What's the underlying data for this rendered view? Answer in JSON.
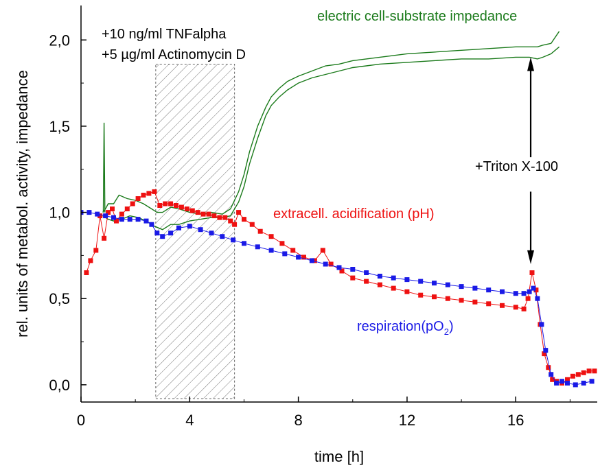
{
  "chart_data": {
    "type": "line",
    "title": "",
    "xlabel": "time [h]",
    "ylabel": "rel. units of metabol. activity, impedance",
    "xlim": [
      0,
      19
    ],
    "ylim": [
      -0.1,
      2.2
    ],
    "xticks": [
      0,
      4,
      8,
      12,
      16
    ],
    "xtick_labels": [
      "0",
      "4",
      "8",
      "12",
      "16"
    ],
    "yticks": [
      0.0,
      0.5,
      1.0,
      1.5,
      2.0
    ],
    "ytick_labels": [
      "0,0",
      "0,5",
      "1,0",
      "1,5",
      "2,0"
    ],
    "treatment_window": [
      2.75,
      5.65
    ],
    "colors": {
      "impedance": "#1a7a1a",
      "acidification": "#ee1111",
      "respiration": "#1a1ae6"
    },
    "labels": {
      "impedance": "electric cell-substrate impedance",
      "acidification": "extracell. acidification  (pH)",
      "respiration_main": "respiration(pO",
      "respiration_sub": "2",
      "respiration_close": ")",
      "treatment_line1": "+10 ng/ml TNFalpha",
      "treatment_line2": "+5 µg/ml Actinomycin D",
      "triton": "+Triton X-100"
    },
    "triton_arrow_x": 16.55,
    "series": [
      {
        "key": "impedance_upper",
        "x": [
          0.8,
          0.9,
          1.0,
          1.2,
          1.4,
          1.7,
          2.0,
          2.3,
          2.6,
          2.8,
          3.0,
          3.3,
          3.6,
          4.0,
          4.4,
          4.8,
          5.2,
          5.5,
          5.8,
          6.0,
          6.2,
          6.5,
          6.8,
          7.0,
          7.3,
          7.6,
          8.0,
          8.5,
          9.0,
          9.5,
          10.0,
          10.5,
          11.0,
          12.0,
          13.0,
          14.0,
          15.0,
          16.0,
          16.5,
          16.8,
          17.0,
          17.3,
          17.6
        ],
        "y": [
          1.0,
          1.02,
          1.05,
          1.05,
          1.1,
          1.08,
          1.07,
          1.05,
          1.02,
          1.0,
          1.0,
          1.03,
          1.02,
          1.0,
          0.99,
          1.0,
          0.99,
          1.02,
          1.12,
          1.22,
          1.35,
          1.5,
          1.61,
          1.67,
          1.72,
          1.76,
          1.79,
          1.82,
          1.85,
          1.86,
          1.88,
          1.89,
          1.9,
          1.92,
          1.93,
          1.94,
          1.95,
          1.96,
          1.96,
          1.96,
          1.97,
          1.98,
          2.05
        ]
      },
      {
        "key": "impedance_lower",
        "x": [
          0.8,
          1.0,
          1.2,
          1.5,
          1.8,
          2.1,
          2.4,
          2.7,
          3.0,
          3.3,
          3.6,
          4.0,
          4.4,
          4.8,
          5.2,
          5.5,
          5.8,
          6.0,
          6.2,
          6.5,
          6.8,
          7.0,
          7.3,
          7.6,
          8.0,
          8.5,
          9.0,
          9.5,
          10.0,
          10.5,
          11.0,
          12.0,
          13.0,
          14.0,
          15.0,
          16.0,
          16.5,
          16.8,
          17.0,
          17.3,
          17.6
        ],
        "y": [
          0.98,
          0.96,
          0.95,
          0.96,
          0.98,
          0.97,
          0.95,
          0.92,
          0.9,
          0.93,
          0.93,
          0.95,
          0.96,
          0.97,
          0.97,
          0.98,
          1.06,
          1.15,
          1.28,
          1.43,
          1.56,
          1.62,
          1.67,
          1.71,
          1.75,
          1.78,
          1.8,
          1.82,
          1.84,
          1.85,
          1.86,
          1.87,
          1.88,
          1.89,
          1.89,
          1.9,
          1.9,
          1.89,
          1.9,
          1.92,
          1.96
        ]
      },
      {
        "key": "impedance_spike",
        "x": [
          0.82,
          0.85,
          0.88
        ],
        "y": [
          1.0,
          1.52,
          1.0
        ]
      },
      {
        "key": "acidification",
        "x": [
          0.2,
          0.35,
          0.55,
          0.7,
          0.85,
          1.0,
          1.15,
          1.3,
          1.5,
          1.7,
          1.9,
          2.1,
          2.3,
          2.5,
          2.7,
          2.9,
          3.1,
          3.3,
          3.5,
          3.7,
          3.9,
          4.1,
          4.3,
          4.5,
          4.7,
          4.9,
          5.1,
          5.3,
          5.5,
          5.65,
          5.8,
          6.0,
          6.3,
          6.6,
          7.0,
          7.4,
          7.8,
          8.2,
          8.6,
          8.9,
          9.2,
          9.6,
          10.0,
          10.5,
          11.0,
          11.5,
          12.0,
          12.5,
          13.0,
          13.5,
          14.0,
          14.5,
          15.0,
          15.5,
          16.0,
          16.3,
          16.45,
          16.6,
          16.75,
          16.9,
          17.05,
          17.2,
          17.35,
          17.5,
          17.7,
          17.9,
          18.1,
          18.3,
          18.5,
          18.7,
          18.9
        ],
        "y": [
          0.65,
          0.72,
          0.78,
          0.98,
          0.85,
          1.0,
          1.02,
          0.95,
          0.99,
          1.02,
          1.05,
          1.08,
          1.1,
          1.11,
          1.12,
          1.04,
          1.05,
          1.05,
          1.04,
          1.03,
          1.02,
          1.01,
          1.0,
          0.99,
          0.99,
          0.98,
          0.97,
          0.97,
          0.95,
          0.93,
          1.0,
          0.96,
          0.93,
          0.89,
          0.86,
          0.82,
          0.78,
          0.74,
          0.72,
          0.78,
          0.7,
          0.66,
          0.62,
          0.6,
          0.58,
          0.56,
          0.54,
          0.52,
          0.51,
          0.5,
          0.49,
          0.48,
          0.47,
          0.46,
          0.45,
          0.44,
          0.5,
          0.65,
          0.55,
          0.35,
          0.18,
          0.1,
          0.03,
          0.02,
          0.01,
          0.03,
          0.05,
          0.06,
          0.07,
          0.08,
          0.08
        ]
      },
      {
        "key": "respiration",
        "x": [
          0.0,
          0.3,
          0.6,
          0.9,
          1.2,
          1.5,
          1.8,
          2.1,
          2.4,
          2.6,
          2.8,
          3.0,
          3.3,
          3.6,
          4.0,
          4.4,
          4.8,
          5.2,
          5.6,
          6.0,
          6.5,
          7.0,
          7.5,
          8.0,
          8.5,
          9.0,
          9.5,
          10.0,
          10.5,
          11.0,
          11.5,
          12.0,
          12.5,
          13.0,
          13.5,
          14.0,
          14.5,
          15.0,
          15.5,
          16.0,
          16.3,
          16.5,
          16.65,
          16.8,
          16.95,
          17.1,
          17.3,
          17.5,
          17.7,
          17.9,
          18.2,
          18.5,
          18.8
        ],
        "y": [
          1.0,
          1.0,
          0.99,
          0.98,
          0.97,
          0.96,
          0.96,
          0.96,
          0.95,
          0.93,
          0.88,
          0.86,
          0.88,
          0.91,
          0.92,
          0.9,
          0.88,
          0.86,
          0.84,
          0.82,
          0.8,
          0.78,
          0.76,
          0.74,
          0.72,
          0.7,
          0.68,
          0.67,
          0.65,
          0.63,
          0.62,
          0.61,
          0.6,
          0.59,
          0.58,
          0.57,
          0.56,
          0.55,
          0.54,
          0.53,
          0.53,
          0.54,
          0.56,
          0.5,
          0.35,
          0.2,
          0.06,
          0.01,
          0.02,
          0.01,
          0.0,
          0.01,
          0.02
        ]
      }
    ]
  }
}
